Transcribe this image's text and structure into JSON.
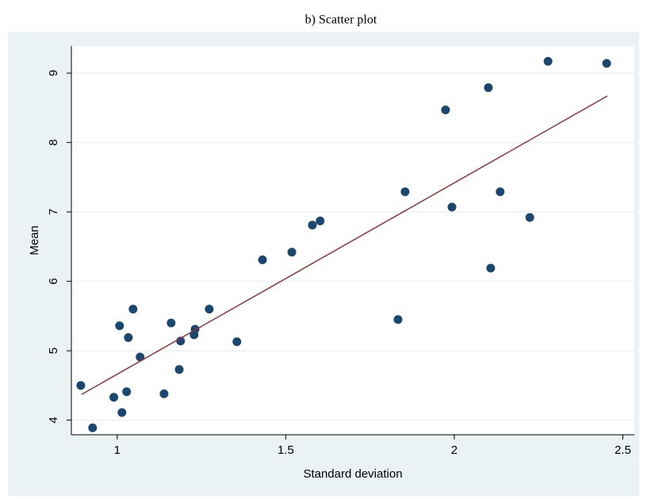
{
  "chart_data": {
    "type": "scatter",
    "title": "b) Scatter plot",
    "x_label": "Standard deviation",
    "y_label": "Mean",
    "xlim": [
      0.864,
      2.534
    ],
    "ylim": [
      3.79,
      9.39
    ],
    "xticks": [
      1,
      1.5,
      2,
      2.5
    ],
    "yticks": [
      4,
      5,
      6,
      7,
      8,
      9
    ],
    "grid": true,
    "series": [
      {
        "color": "#1a476f",
        "x": [
          0.892,
          0.927,
          0.99,
          1.007,
          1.014,
          1.028,
          1.033,
          1.047,
          1.068,
          1.139,
          1.16,
          1.184,
          1.188,
          1.228,
          1.231,
          1.273,
          1.355,
          1.431,
          1.518,
          1.579,
          1.602,
          1.833,
          1.854,
          1.974,
          1.993,
          2.101,
          2.108,
          2.136,
          2.224,
          2.278,
          2.452
        ],
        "values": [
          4.5,
          3.89,
          4.33,
          5.36,
          4.11,
          4.41,
          5.19,
          5.6,
          4.91,
          4.38,
          5.4,
          4.73,
          5.14,
          5.23,
          5.31,
          5.6,
          5.13,
          6.31,
          6.42,
          6.81,
          6.87,
          5.45,
          7.29,
          8.47,
          7.07,
          8.79,
          6.19,
          7.29,
          6.92,
          9.17,
          9.14
        ]
      }
    ],
    "fit_line": {
      "color": "#90353b",
      "x": [
        0.894,
        2.454
      ],
      "values": [
        4.37,
        8.67
      ]
    }
  }
}
